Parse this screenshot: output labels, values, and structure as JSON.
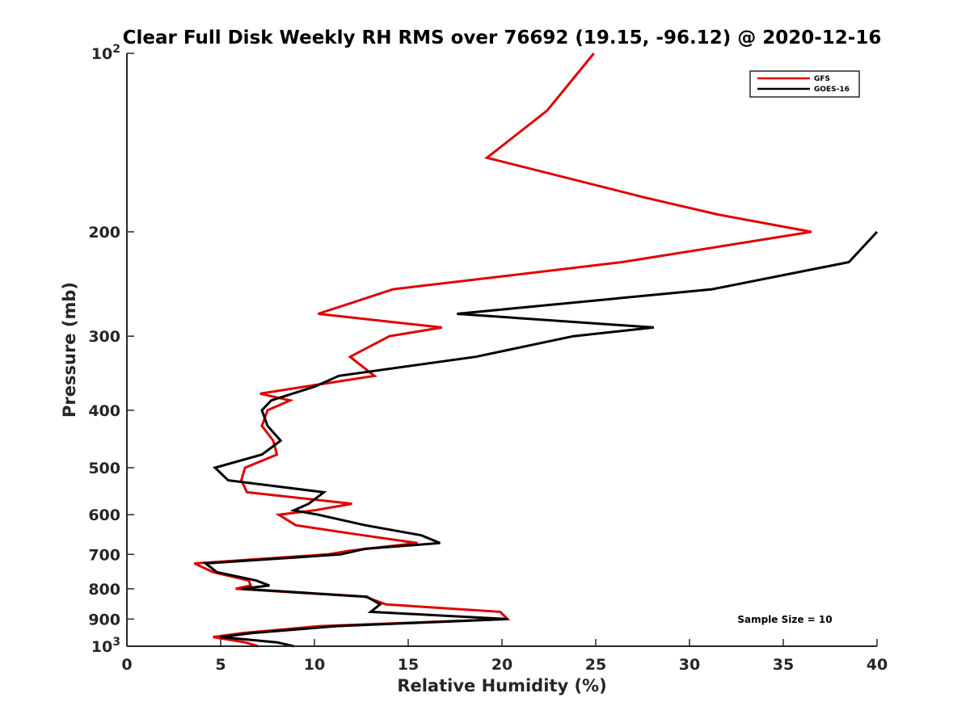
{
  "chart_data": {
    "type": "line",
    "title": "Clear Full Disk Weekly RH RMS over 76692 (19.15, -96.12) @ 2020-12-16",
    "xlabel": "Relative Humidity (%)",
    "ylabel": "Pressure (mb)",
    "xlim": [
      0,
      40
    ],
    "ylim": [
      100,
      1000
    ],
    "yscale": "log",
    "y_reversed": true,
    "x_ticks": [
      "0",
      "5",
      "10",
      "15",
      "20",
      "25",
      "30",
      "35",
      "40"
    ],
    "y_ticks": [
      {
        "value": 100,
        "label": "10",
        "sup": "2"
      },
      {
        "value": 200,
        "label": "200",
        "sup": ""
      },
      {
        "value": 300,
        "label": "300",
        "sup": ""
      },
      {
        "value": 400,
        "label": "400",
        "sup": ""
      },
      {
        "value": 500,
        "label": "500",
        "sup": ""
      },
      {
        "value": 600,
        "label": "600",
        "sup": ""
      },
      {
        "value": 700,
        "label": "700",
        "sup": ""
      },
      {
        "value": 800,
        "label": "800",
        "sup": ""
      },
      {
        "value": 900,
        "label": "900",
        "sup": ""
      },
      {
        "value": 1000,
        "label": "10",
        "sup": "3"
      }
    ],
    "legend_position": "top-right",
    "annotation": "Sample Size = 10",
    "series": [
      {
        "name": "GFS",
        "color": "#e00000",
        "points": [
          [
            24.9,
            100
          ],
          [
            22.4,
            125
          ],
          [
            19.2,
            150
          ],
          [
            27.6,
            175
          ],
          [
            31.5,
            187
          ],
          [
            36.5,
            200
          ],
          [
            26.4,
            225
          ],
          [
            14.2,
            250
          ],
          [
            10.2,
            275
          ],
          [
            16.8,
            290
          ],
          [
            14.0,
            300
          ],
          [
            11.9,
            325
          ],
          [
            13.2,
            350
          ],
          [
            7.1,
            375
          ],
          [
            8.7,
            385
          ],
          [
            7.5,
            400
          ],
          [
            7.2,
            425
          ],
          [
            7.8,
            450
          ],
          [
            8.0,
            475
          ],
          [
            6.3,
            500
          ],
          [
            6.1,
            525
          ],
          [
            6.4,
            550
          ],
          [
            12.0,
            575
          ],
          [
            10.0,
            590
          ],
          [
            8.1,
            600
          ],
          [
            9.0,
            625
          ],
          [
            12.6,
            650
          ],
          [
            15.5,
            670
          ],
          [
            11.9,
            690
          ],
          [
            10.7,
            700
          ],
          [
            3.6,
            725
          ],
          [
            4.6,
            750
          ],
          [
            6.5,
            775
          ],
          [
            6.6,
            790
          ],
          [
            5.8,
            800
          ],
          [
            12.7,
            825
          ],
          [
            13.8,
            850
          ],
          [
            19.9,
            875
          ],
          [
            20.3,
            900
          ],
          [
            10.3,
            925
          ],
          [
            6.2,
            950
          ],
          [
            4.6,
            965
          ],
          [
            6.3,
            985
          ],
          [
            7.0,
            1000
          ]
        ]
      },
      {
        "name": "GOES-16",
        "color": "#000000",
        "points": [
          [
            40.0,
            200
          ],
          [
            38.5,
            225
          ],
          [
            31.2,
            250
          ],
          [
            17.6,
            275
          ],
          [
            28.1,
            290
          ],
          [
            23.8,
            300
          ],
          [
            18.6,
            325
          ],
          [
            11.3,
            350
          ],
          [
            10.0,
            365
          ],
          [
            7.7,
            385
          ],
          [
            7.2,
            400
          ],
          [
            7.5,
            425
          ],
          [
            8.2,
            450
          ],
          [
            7.2,
            475
          ],
          [
            4.7,
            500
          ],
          [
            5.4,
            525
          ],
          [
            10.5,
            550
          ],
          [
            9.7,
            575
          ],
          [
            8.9,
            590
          ],
          [
            10.2,
            600
          ],
          [
            12.7,
            625
          ],
          [
            15.7,
            650
          ],
          [
            16.7,
            670
          ],
          [
            12.7,
            685
          ],
          [
            11.4,
            700
          ],
          [
            4.2,
            725
          ],
          [
            4.8,
            750
          ],
          [
            6.9,
            775
          ],
          [
            7.6,
            790
          ],
          [
            6.1,
            800
          ],
          [
            12.8,
            825
          ],
          [
            13.5,
            850
          ],
          [
            13.0,
            875
          ],
          [
            20.3,
            900
          ],
          [
            11.2,
            925
          ],
          [
            6.7,
            950
          ],
          [
            5.0,
            965
          ],
          [
            8.0,
            985
          ],
          [
            8.9,
            1000
          ]
        ]
      }
    ]
  }
}
